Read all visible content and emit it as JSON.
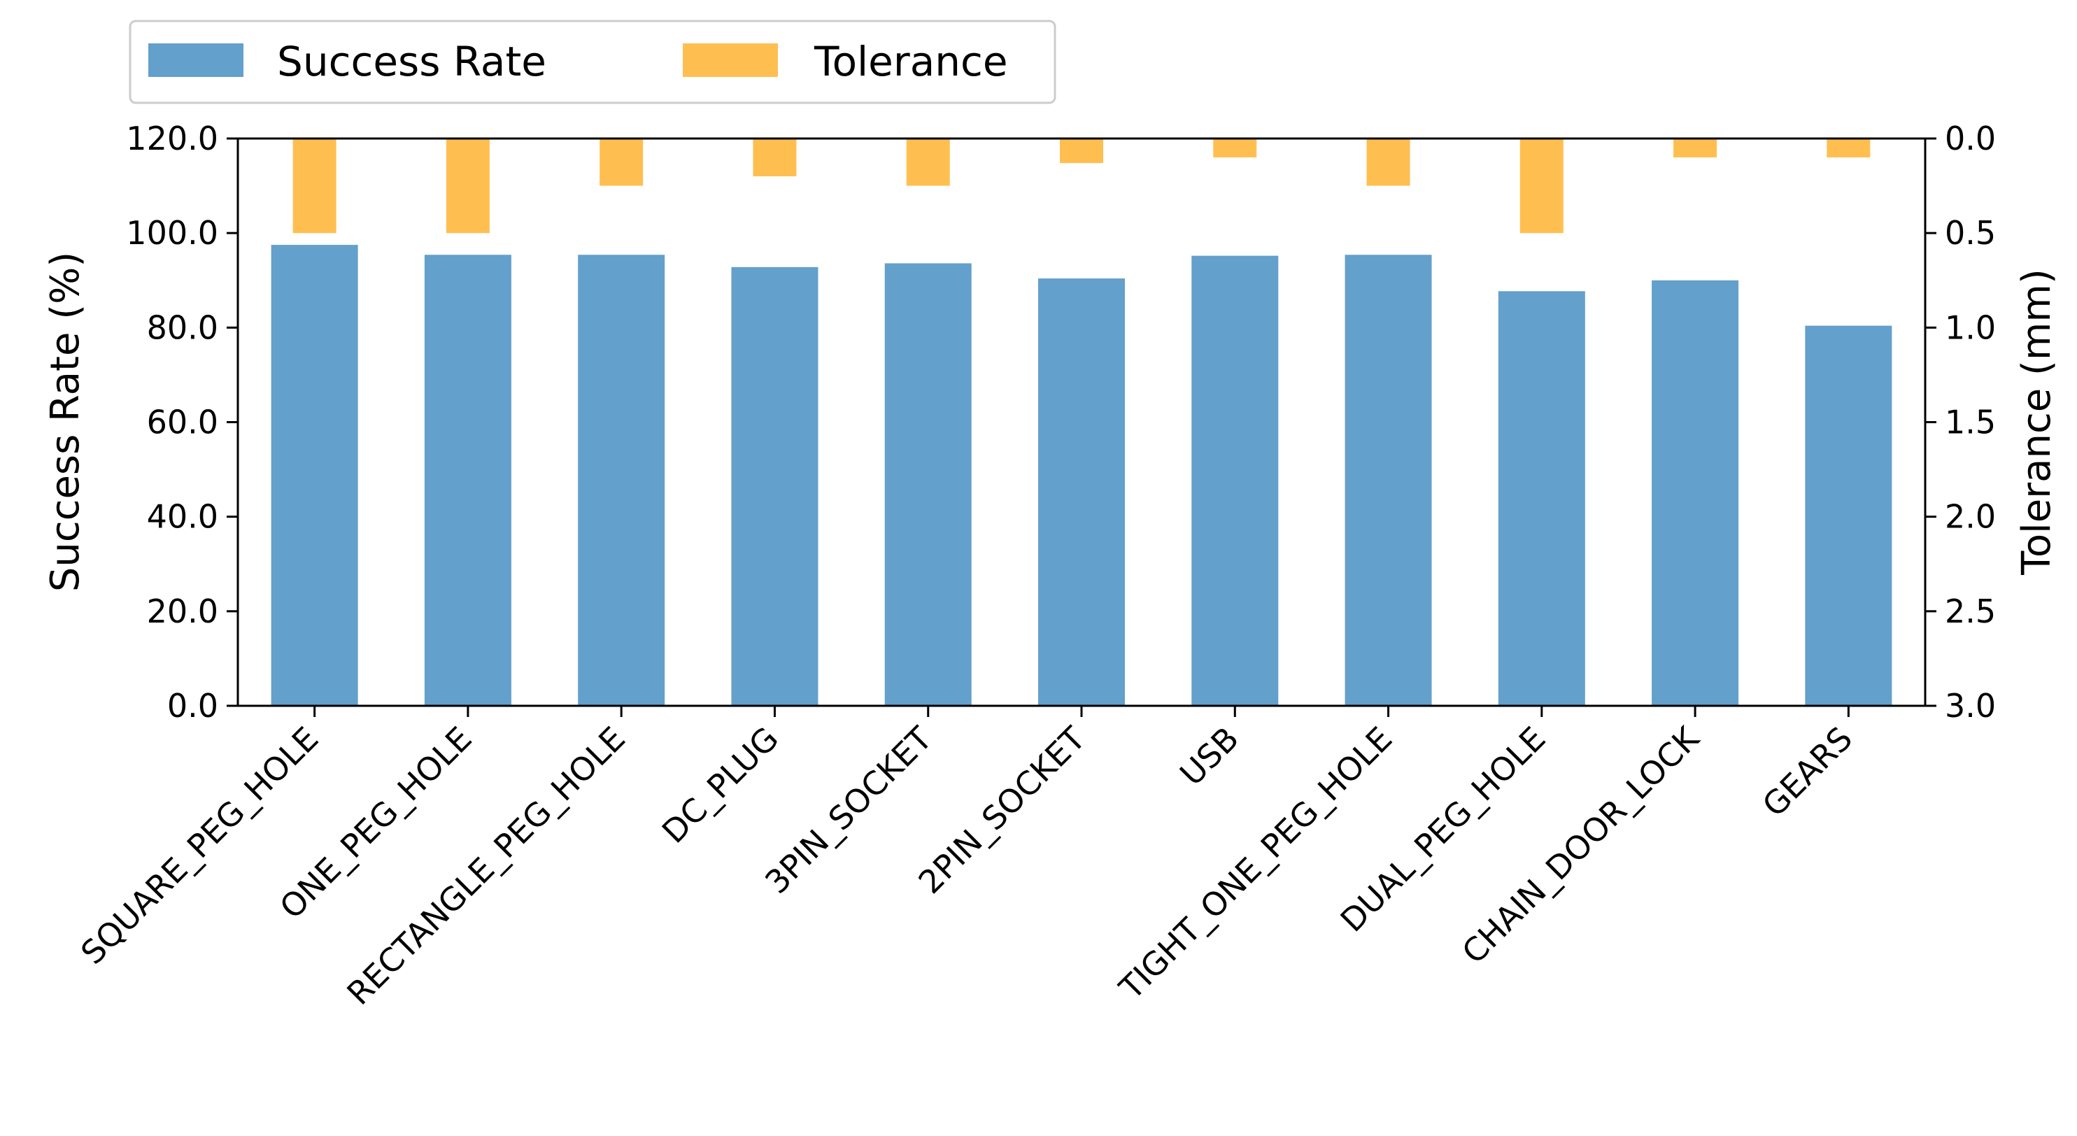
{
  "chart_data": {
    "type": "bar",
    "categories": [
      "SQUARE_PEG_HOLE",
      "ONE_PEG_HOLE",
      "RECTANGLE_PEG_HOLE",
      "DC_PLUG",
      "3PIN_SOCKET",
      "2PIN_SOCKET",
      "USB",
      "TIGHT_ONE_PEG_HOLE",
      "DUAL_PEG_HOLE",
      "CHAIN_DOOR_LOCK",
      "GEARS"
    ],
    "series": [
      {
        "name": "Success Rate",
        "axis": "left",
        "color": "#63a0cb",
        "values": [
          97.5,
          95.4,
          95.4,
          92.8,
          93.6,
          90.4,
          95.2,
          95.4,
          87.7,
          90.0,
          80.4
        ]
      },
      {
        "name": "Tolerance",
        "axis": "right",
        "color": "#ffbf50",
        "values": [
          0.5,
          0.5,
          0.25,
          0.2,
          0.25,
          0.13,
          0.1,
          0.25,
          0.5,
          0.1,
          0.1
        ]
      }
    ],
    "ylabel": "Success Rate (%)",
    "y2label": "Tolerance (mm)",
    "ylim": [
      0,
      120
    ],
    "y2lim": [
      3.0,
      0.0
    ],
    "y2_inverted": true,
    "yticks": [
      "0.0",
      "20.0",
      "40.0",
      "60.0",
      "80.0",
      "100.0",
      "120.0"
    ],
    "y2ticks": [
      "3.0",
      "2.5",
      "2.0",
      "1.5",
      "1.0",
      "0.5",
      "0.0"
    ],
    "ylabel_color": "#1f77b4",
    "y2label_color": "#ffa500",
    "grid": false,
    "legend": "top-left, outside plot"
  }
}
